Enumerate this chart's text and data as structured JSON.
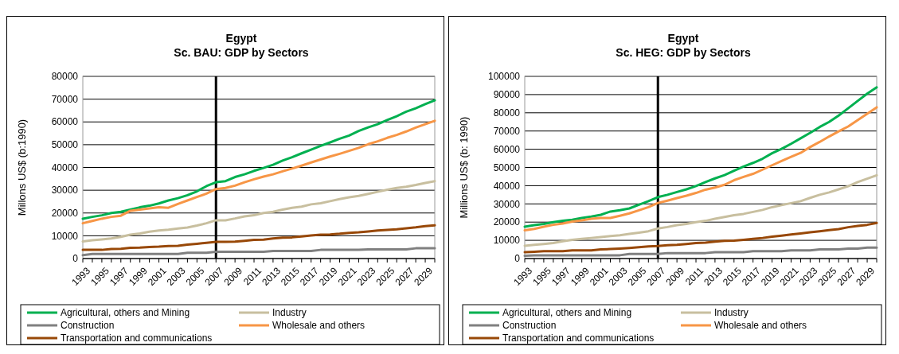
{
  "chart_data": [
    {
      "type": "line",
      "title": "Egypt\nSc. BAU: GDP by Sectors",
      "ylabel": "Millons US$ (b:1990)",
      "categories": [
        "1993",
        null,
        "1995",
        null,
        "1997",
        null,
        "1999",
        null,
        "2001",
        null,
        "2003",
        null,
        "2005",
        null,
        "2007",
        null,
        "2009",
        null,
        "2011",
        null,
        "2013",
        null,
        "2015",
        null,
        "2017",
        null,
        "2019",
        null,
        "2021",
        null,
        "2023",
        null,
        "2025",
        null,
        "2027",
        null,
        "2029",
        null
      ],
      "ylim": [
        0,
        80000
      ],
      "yticks": [
        0,
        10000,
        20000,
        30000,
        40000,
        50000,
        60000,
        70000,
        80000
      ],
      "grid": "y",
      "legend": "bottom",
      "ref_lines": [
        {
          "axis": "x",
          "value": "2007",
          "color": "#000000"
        }
      ],
      "series": [
        {
          "name": "Agricultural, others and Mining",
          "color": "#00b050",
          "values": [
            17500,
            18300,
            19000,
            20000,
            20500,
            21500,
            22500,
            23200,
            24200,
            25500,
            26500,
            27800,
            29500,
            31800,
            33500,
            34000,
            35800,
            37000,
            38500,
            39800,
            41200,
            43000,
            44500,
            46200,
            47800,
            49500,
            51000,
            52600,
            54000,
            56000,
            57600,
            59000,
            60800,
            62500,
            64500,
            66000,
            67800,
            69500
          ]
        },
        {
          "name": "Industry",
          "color": "#c8bf9f",
          "values": [
            7500,
            8000,
            8400,
            8800,
            9500,
            10500,
            11000,
            11800,
            12300,
            12700,
            13200,
            13600,
            14500,
            15500,
            16800,
            16800,
            17600,
            18500,
            19000,
            20000,
            20500,
            21500,
            22300,
            22800,
            23800,
            24300,
            25200,
            26100,
            26900,
            27500,
            28400,
            29300,
            30200,
            31000,
            31500,
            32300,
            33200,
            34000
          ]
        },
        {
          "name": "Construction",
          "color": "#808080",
          "values": [
            1500,
            2000,
            2000,
            2000,
            2000,
            2000,
            2000,
            2000,
            2000,
            2000,
            2000,
            2500,
            2500,
            2500,
            3000,
            3000,
            3000,
            3000,
            3000,
            3000,
            3300,
            3300,
            3300,
            3300,
            3300,
            3800,
            3800,
            3800,
            3800,
            3800,
            4000,
            4000,
            4000,
            4000,
            4000,
            4500,
            4500,
            4500
          ]
        },
        {
          "name": "Wholesale and others",
          "color": "#f79646",
          "values": [
            15500,
            16500,
            17500,
            18300,
            18800,
            21000,
            21500,
            22000,
            22500,
            22300,
            24000,
            25500,
            27000,
            28500,
            30500,
            31000,
            32000,
            33500,
            34800,
            36000,
            37000,
            38300,
            39500,
            40800,
            42200,
            43500,
            44800,
            46000,
            47300,
            48600,
            50200,
            51500,
            53000,
            54300,
            55800,
            57500,
            59000,
            60500
          ]
        },
        {
          "name": "Transportation and communications",
          "color": "#984807",
          "values": [
            3800,
            3800,
            3800,
            4200,
            4300,
            4700,
            4800,
            5100,
            5200,
            5500,
            5600,
            6100,
            6500,
            6900,
            7300,
            7300,
            7400,
            7800,
            8200,
            8300,
            8800,
            9200,
            9300,
            9700,
            10100,
            10500,
            10600,
            10900,
            11300,
            11500,
            11900,
            12300,
            12600,
            12800,
            13300,
            13700,
            14200,
            14600
          ]
        }
      ]
    },
    {
      "type": "line",
      "title": "Egypt\nSc. HEG: GDP by Sectors",
      "ylabel": "Millions US$ (b: 1990)",
      "categories": [
        "1993",
        null,
        "1995",
        null,
        "1997",
        null,
        "1999",
        null,
        "2001",
        null,
        "2003",
        null,
        "2005",
        null,
        "2007",
        null,
        "2009",
        null,
        "2011",
        null,
        "2013",
        null,
        "2015",
        null,
        "2017",
        null,
        "2019",
        null,
        "2021",
        null,
        "2023",
        null,
        "2025",
        null,
        "2027",
        null,
        "2029",
        null
      ],
      "ylim": [
        0,
        100000
      ],
      "yticks": [
        0,
        10000,
        20000,
        30000,
        40000,
        50000,
        60000,
        70000,
        80000,
        90000,
        100000
      ],
      "grid": "y",
      "legend": "bottom",
      "ref_lines": [
        {
          "axis": "x",
          "value": "2007",
          "color": "#000000"
        }
      ],
      "series": [
        {
          "name": "Agricultural, others and Mining",
          "color": "#00b050",
          "values": [
            17500,
            18300,
            19000,
            20000,
            20700,
            21300,
            22300,
            23000,
            24000,
            25800,
            26500,
            27500,
            29500,
            31500,
            33700,
            35000,
            36500,
            38000,
            39800,
            42000,
            44000,
            45800,
            48200,
            50500,
            52500,
            54800,
            57800,
            60200,
            63000,
            66000,
            69000,
            72200,
            75000,
            78500,
            82500,
            86500,
            90500,
            94000
          ]
        },
        {
          "name": "Industry",
          "color": "#c8bf9f",
          "values": [
            7000,
            7500,
            8000,
            8500,
            9500,
            10300,
            10800,
            11300,
            11800,
            12300,
            12800,
            13500,
            14200,
            15000,
            16500,
            17300,
            18300,
            19000,
            20000,
            20700,
            21800,
            22800,
            23800,
            24500,
            25600,
            26700,
            28200,
            29300,
            30400,
            31500,
            33300,
            35000,
            36300,
            38000,
            39700,
            42000,
            43800,
            45700
          ]
        },
        {
          "name": "Construction",
          "color": "#808080",
          "values": [
            1500,
            1800,
            1800,
            1800,
            1800,
            1800,
            1800,
            1800,
            1800,
            1800,
            1800,
            2500,
            2500,
            2500,
            2500,
            3000,
            3000,
            3000,
            3000,
            3000,
            3500,
            3500,
            3500,
            3500,
            4000,
            4000,
            4000,
            4000,
            4500,
            4500,
            4500,
            5000,
            5000,
            5000,
            5500,
            5500,
            6000,
            6000
          ]
        },
        {
          "name": "Wholesale and others",
          "color": "#f79646",
          "values": [
            15500,
            16300,
            17500,
            18500,
            19200,
            20300,
            21000,
            21800,
            22300,
            22300,
            23500,
            24800,
            26500,
            28200,
            30500,
            31800,
            33200,
            34500,
            36000,
            37800,
            39000,
            40500,
            43000,
            44800,
            46500,
            48800,
            51200,
            53500,
            55800,
            58000,
            61200,
            64000,
            67000,
            69800,
            72500,
            76000,
            79500,
            83000
          ]
        },
        {
          "name": "Transportation and communications",
          "color": "#984807",
          "values": [
            3500,
            3700,
            4000,
            4000,
            4000,
            4500,
            4500,
            4500,
            5000,
            5200,
            5500,
            5800,
            6200,
            6700,
            6900,
            7300,
            7500,
            8000,
            8500,
            8700,
            9300,
            9700,
            9800,
            10300,
            10800,
            11300,
            12000,
            12600,
            13200,
            13800,
            14400,
            15000,
            15600,
            16200,
            17200,
            17900,
            18500,
            19500
          ]
        }
      ]
    }
  ]
}
